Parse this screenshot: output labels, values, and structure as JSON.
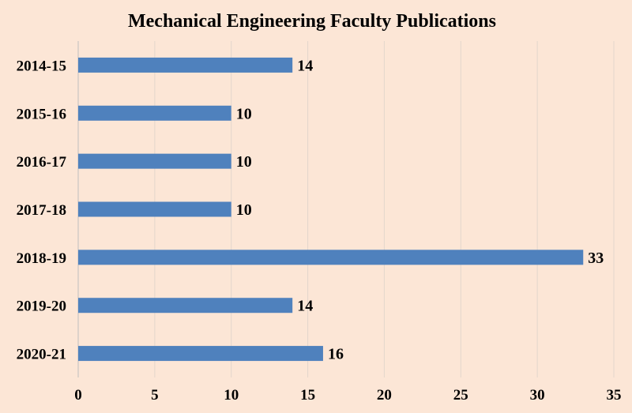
{
  "chart_data": {
    "type": "bar",
    "orientation": "horizontal",
    "title": "Mechanical Engineering Faculty Publications",
    "categories": [
      "2014-15",
      "2015-16",
      "2016-17",
      "2017-18",
      "2018-19",
      "2019-20",
      "2020-21"
    ],
    "values": [
      14,
      10,
      10,
      10,
      33,
      14,
      16
    ],
    "data_labels": [
      "14",
      "10",
      "10",
      "10",
      "33",
      "14",
      "16"
    ],
    "xlim": [
      0,
      35
    ],
    "x_ticks": [
      0,
      5,
      10,
      15,
      20,
      25,
      30,
      35
    ],
    "x_tick_labels": [
      "0",
      "5",
      "10",
      "15",
      "20",
      "25",
      "30",
      "35"
    ],
    "xlabel": "",
    "ylabel": "",
    "grid": "vertical",
    "legend": "none",
    "bar_color": "#4f81bd",
    "grid_color": "#e3d6cc",
    "background_color": "#fce6d6"
  }
}
